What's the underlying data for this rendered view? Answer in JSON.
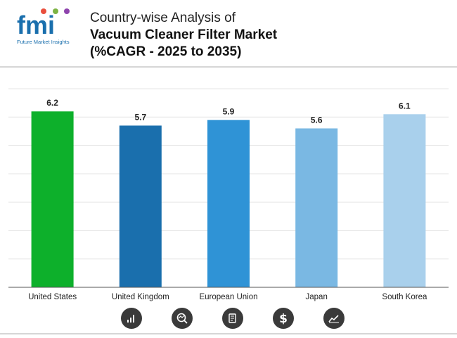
{
  "header": {
    "brand": "fmi",
    "brand_sub": "Future Market Insights",
    "title_line1": "Country-wise Analysis of",
    "title_line2": "Vacuum Cleaner Filter Market",
    "title_line3": "(%CAGR - 2025 to 2035)"
  },
  "chart_data": {
    "type": "bar",
    "title": "Country-wise Analysis of Vacuum Cleaner Filter Market (%CAGR - 2025 to 2035)",
    "categories": [
      "United States",
      "United Kingdom",
      "European Union",
      "Japan",
      "South Korea"
    ],
    "values": [
      6.2,
      5.7,
      5.9,
      5.6,
      6.1
    ],
    "data_labels": [
      "6.2",
      "5.7",
      "5.9",
      "5.6",
      "6.1"
    ],
    "colors": [
      "#0db02b",
      "#1a6fad",
      "#2f93d6",
      "#7ab8e3",
      "#a9d0ec"
    ],
    "ylim": [
      0,
      7
    ],
    "grid": true,
    "xlabel": "",
    "ylabel": ""
  },
  "footer_icons": [
    "bar-growth-icon",
    "chart-magnifier-icon",
    "report-search-icon",
    "dollar-icon",
    "trend-chart-icon"
  ],
  "colors": {
    "icon_bg": "#3a3a3a",
    "grid": "#e6e6e6",
    "axis": "#555555"
  }
}
